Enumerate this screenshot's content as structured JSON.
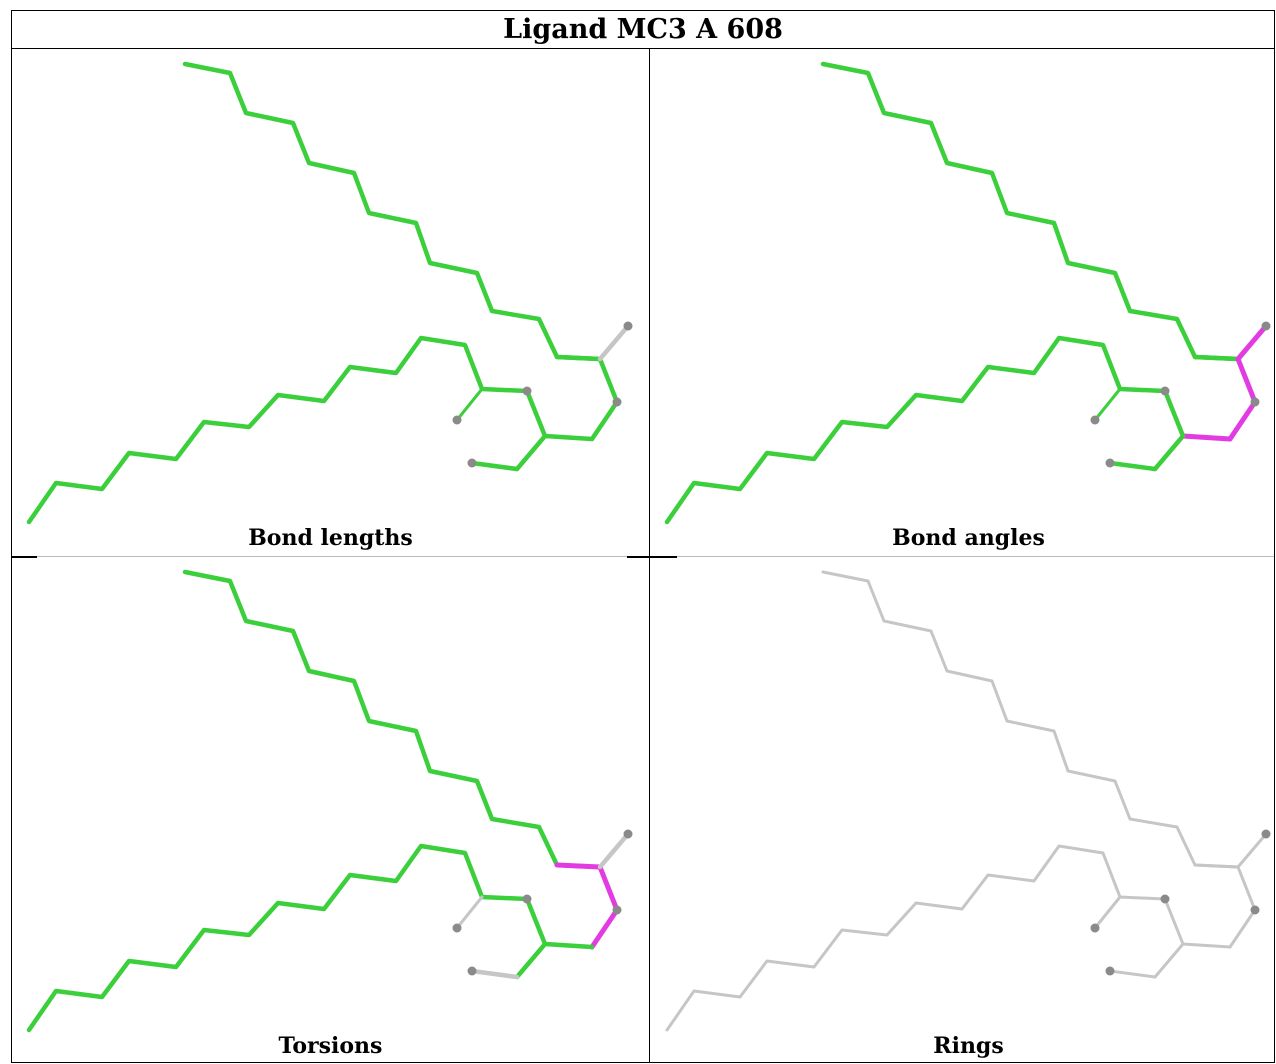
{
  "title": "Ligand MC3 A 608",
  "colors": {
    "ok": "#3ccf3c",
    "outlier": "#e23be2",
    "neutral": "#c6c6c6",
    "atom": "#8a8a8a"
  },
  "panels": [
    {
      "caption": "Bond lengths",
      "scheme": {
        "main": "ok",
        "side": "ok",
        "outliers": []
      }
    },
    {
      "caption": "Bond angles",
      "scheme": {
        "main": "ok",
        "side": "ok",
        "outliers": [
          "c1",
          "c2",
          "c3",
          "c4"
        ]
      }
    },
    {
      "caption": "Torsions",
      "scheme": {
        "main": "ok",
        "side": "neutral",
        "outliers": [
          "c0",
          "c1",
          "c3"
        ]
      }
    },
    {
      "caption": "Rings",
      "scheme": {
        "main": "neutral",
        "side": "neutral",
        "outliers": []
      }
    }
  ]
}
